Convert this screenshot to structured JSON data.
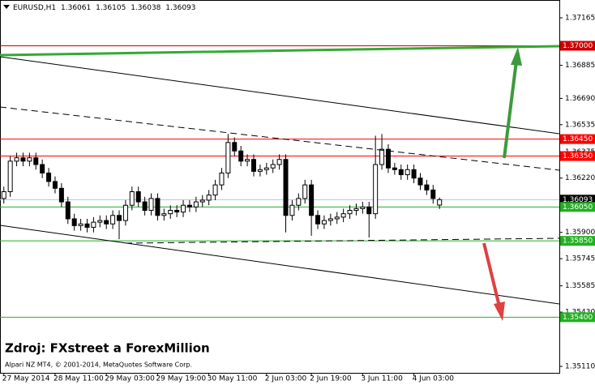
{
  "chart_data": {
    "type": "candlestick",
    "symbol": "EURUSD,H1",
    "annotation": "Zdroj: FXstreet a ForexMillion",
    "footer": "Alpari NZ MT4, © 2001-2014, MetaQuotes Software Corp.",
    "open": [
      1.361,
      1.3614,
      1.3632,
      1.3634,
      1.3632,
      1.3634,
      1.363,
      1.3625,
      1.362,
      1.3616,
      1.3608,
      1.3598,
      1.3594,
      1.3595,
      1.3593,
      1.3596,
      1.3597,
      1.3595,
      1.36,
      1.3597,
      1.3606,
      1.3614,
      1.3608,
      1.3603,
      1.361,
      1.36,
      1.3601,
      1.3603,
      1.3602,
      1.3606,
      1.3605,
      1.3608,
      1.3609,
      1.3612,
      1.3618,
      1.3625,
      1.3643,
      1.3638,
      1.3632,
      1.3633,
      1.3626,
      1.3627,
      1.3628,
      1.363,
      1.3633,
      1.36,
      1.3606,
      1.361,
      1.3618,
      1.36,
      1.3595,
      1.3597,
      1.3598,
      1.3599,
      1.3601,
      1.3603,
      1.3604,
      1.3605,
      1.3601,
      1.363,
      1.3639,
      1.3628,
      1.3627,
      1.3624,
      1.3627,
      1.3622,
      1.3618,
      1.3615,
      1.36061
    ],
    "high": [
      1.3617,
      1.3635,
      1.3637,
      1.3637,
      1.3637,
      1.3637,
      1.3633,
      1.3628,
      1.3623,
      1.3619,
      1.3611,
      1.3601,
      1.3598,
      1.3598,
      1.3599,
      1.36,
      1.36,
      1.3603,
      1.3603,
      1.3609,
      1.3617,
      1.3617,
      1.3611,
      1.3613,
      1.3613,
      1.3604,
      1.3606,
      1.3606,
      1.3609,
      1.3609,
      1.3611,
      1.3612,
      1.3615,
      1.3621,
      1.3628,
      1.3648,
      1.3646,
      1.3641,
      1.3636,
      1.3636,
      1.363,
      1.3631,
      1.3633,
      1.3636,
      1.3636,
      1.3609,
      1.3613,
      1.3621,
      1.3621,
      1.3603,
      1.36,
      1.3601,
      1.3602,
      1.3604,
      1.3606,
      1.3607,
      1.3608,
      1.3608,
      1.3647,
      1.3648,
      1.3642,
      1.3631,
      1.363,
      1.363,
      1.363,
      1.3625,
      1.3621,
      1.3618,
      1.36105
    ],
    "low": [
      1.3607,
      1.3611,
      1.3629,
      1.3629,
      1.3629,
      1.3627,
      1.3622,
      1.3617,
      1.3613,
      1.3605,
      1.3595,
      1.3591,
      1.3591,
      1.359,
      1.359,
      1.3593,
      1.3592,
      1.3592,
      1.3586,
      1.3594,
      1.3603,
      1.3605,
      1.36,
      1.36,
      1.3597,
      1.3597,
      1.3598,
      1.3599,
      1.3599,
      1.3602,
      1.3602,
      1.3605,
      1.3606,
      1.3609,
      1.3615,
      1.3622,
      1.3635,
      1.3629,
      1.3629,
      1.3623,
      1.3623,
      1.3624,
      1.3625,
      1.3627,
      1.359,
      1.3597,
      1.3603,
      1.3607,
      1.3588,
      1.3592,
      1.3592,
      1.3594,
      1.3595,
      1.3596,
      1.3598,
      1.36,
      1.3601,
      1.3587,
      1.3598,
      1.3627,
      1.3625,
      1.3624,
      1.3621,
      1.3621,
      1.3619,
      1.3615,
      1.3612,
      1.3607,
      1.36038
    ],
    "close": [
      1.3614,
      1.3632,
      1.3634,
      1.3632,
      1.3634,
      1.363,
      1.3625,
      1.362,
      1.3616,
      1.3608,
      1.3598,
      1.3594,
      1.3595,
      1.3593,
      1.3596,
      1.3597,
      1.3595,
      1.36,
      1.3597,
      1.3606,
      1.3614,
      1.3608,
      1.3603,
      1.361,
      1.36,
      1.3601,
      1.3603,
      1.3602,
      1.3606,
      1.3605,
      1.3608,
      1.3609,
      1.3612,
      1.3618,
      1.3625,
      1.3643,
      1.3638,
      1.3632,
      1.3633,
      1.3626,
      1.3627,
      1.3628,
      1.363,
      1.3633,
      1.36,
      1.3606,
      1.361,
      1.3618,
      1.36,
      1.3595,
      1.3597,
      1.3598,
      1.3599,
      1.3601,
      1.3603,
      1.3604,
      1.3605,
      1.3601,
      1.363,
      1.3639,
      1.3628,
      1.3627,
      1.3624,
      1.3627,
      1.3622,
      1.3618,
      1.3615,
      1.361,
      1.36093
    ],
    "bull_color": "#ffffff",
    "bear_color": "#000000",
    "wick_color": "#000000",
    "xlim": [
      -0.6,
      86.7
    ],
    "xticks": [
      {
        "value": 0,
        "label": "27 May 2014"
      },
      {
        "value": 8,
        "label": "28 May 11:00"
      },
      {
        "value": 16,
        "label": "29 May 03:00"
      },
      {
        "value": 24,
        "label": "29 May 19:00"
      },
      {
        "value": 32,
        "label": "30 May 11:00"
      },
      {
        "value": 41,
        "label": "2 Jun 03:00"
      },
      {
        "value": 48,
        "label": "2 Jun 19:00"
      },
      {
        "value": 56,
        "label": "3 Jun 11:00"
      },
      {
        "value": 64,
        "label": "4 Jun 03:00"
      }
    ],
    "ylim": [
      1.35072,
      1.3727
    ],
    "yticks": [
      1.37165,
      1.36885,
      {
        "value": 1.3669,
        "label": "1.36690"
      },
      1.36535,
      1.36375,
      {
        "value": 1.3622,
        "label": "1.36220"
      },
      {
        "value": 1.359,
        "label": "1.35900"
      },
      1.35745,
      1.35585,
      {
        "value": 1.3543,
        "label": "1.35430"
      },
      {
        "value": 1.3511,
        "label": "1.35110"
      }
    ],
    "levels": [
      {
        "value": 1.37,
        "label": "1.37000",
        "color": "#cc0000"
      },
      {
        "value": 1.3645,
        "label": "1.36450",
        "color": "#ff0000"
      },
      {
        "value": 1.3635,
        "label": "1.36350",
        "color": "#ff0000"
      },
      {
        "value": 1.36093,
        "color": "#b0c4de"
      },
      {
        "value": 1.3605,
        "label": "1.36050",
        "color": "#22b022"
      },
      {
        "value": 1.3585,
        "label": "1.35850",
        "color": "#22b022"
      },
      {
        "value": 1.354,
        "label": "1.35400",
        "color": "#22b022"
      }
    ]
  }
}
